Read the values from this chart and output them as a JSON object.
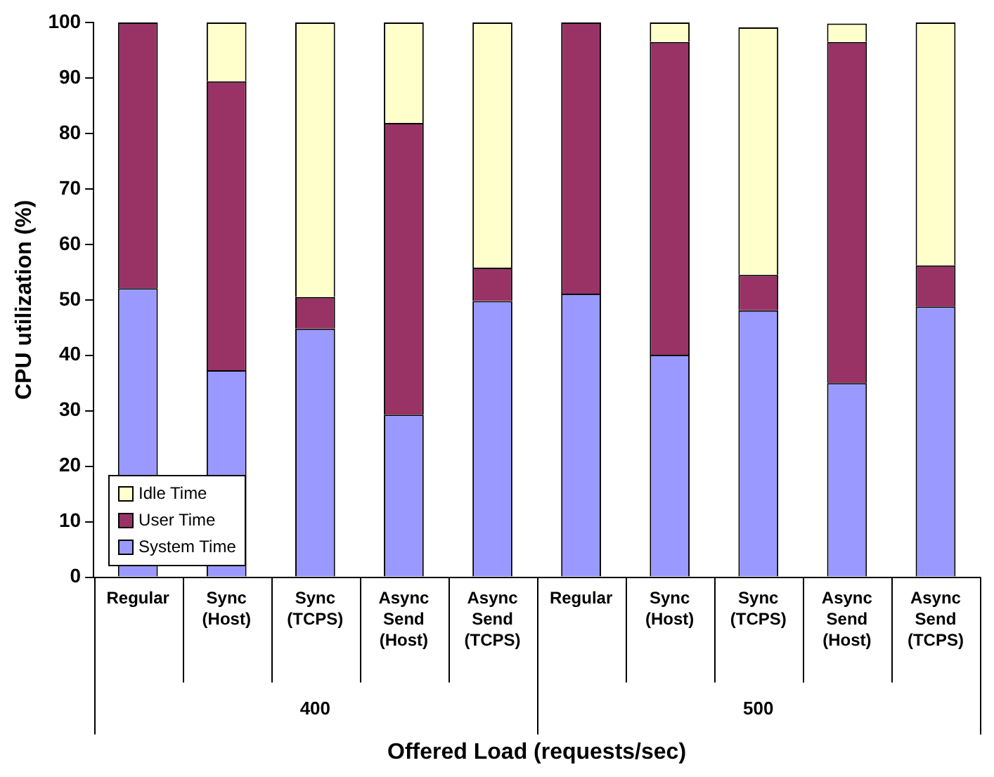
{
  "chart_data": {
    "type": "bar",
    "stacked": true,
    "xlabel": "Offered Load (requests/sec)",
    "ylabel": "CPU utilization (%)",
    "categories": [
      "Regular",
      "Sync\n(Host)",
      "Sync\n(TCPS)",
      "Async\nSend\n(Host)",
      "Async\nSend\n(TCPS)",
      "Regular",
      "Sync\n(Host)",
      "Sync\n(TCPS)",
      "Async\nSend\n(Host)",
      "Async\nSend\n(TCPS)"
    ],
    "series": [
      {
        "name": "System Time",
        "color": "#9999ff",
        "values": [
          52.1,
          37.3,
          44.8,
          29.3,
          49.8,
          51.1,
          40.1,
          48.1,
          35.0,
          48.8
        ]
      },
      {
        "name": "User Time",
        "color": "#993366",
        "values": [
          47.9,
          52.1,
          5.7,
          52.6,
          6.0,
          48.9,
          56.4,
          6.4,
          61.5,
          7.4
        ]
      },
      {
        "name": "Idle Time",
        "color": "#ffffcc",
        "values": [
          0,
          10.6,
          49.5,
          18.1,
          44.2,
          0,
          3.5,
          44.6,
          3.3,
          43.8
        ]
      }
    ],
    "ylim": [
      0,
      100
    ],
    "yticks": [
      0,
      10,
      20,
      30,
      40,
      50,
      60,
      70,
      80,
      90,
      100
    ],
    "annotations": [
      "400",
      "500"
    ],
    "grid": false,
    "legend": "bottom left"
  }
}
